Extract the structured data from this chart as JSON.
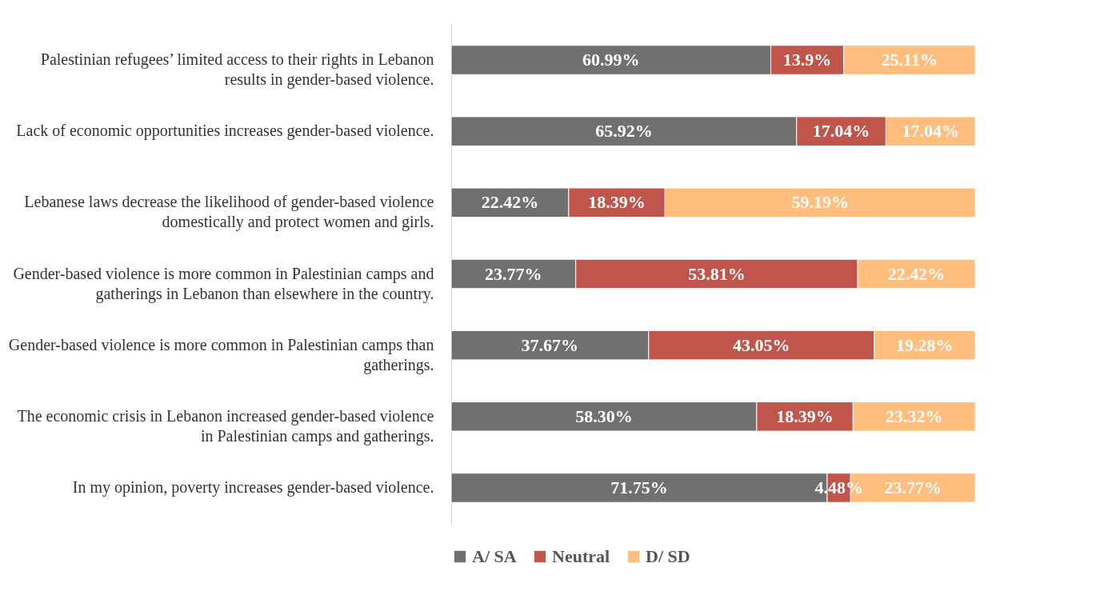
{
  "chart_data": {
    "type": "bar",
    "orientation": "horizontal",
    "stacked": true,
    "legend": "bottom",
    "tick_labels": "y",
    "grid": false,
    "xlim": [
      0,
      100
    ],
    "categories": [
      "Palestinian refugees’ limited access to their rights in Lebanon results in gender-based violence.",
      "Lack of economic opportunities increases gender-based violence.",
      "Lebanese laws decrease the likelihood of gender-based violence domestically and protect women and girls.",
      "Gender-based violence is more common in Palestinian camps and gatherings in Lebanon than elsewhere in the country.",
      "Gender-based violence is more common in Palestinian camps than gatherings.",
      "The economic crisis in Lebanon increased gender-based violence in Palestinian camps and gatherings.",
      "In my opinion, poverty increases gender-based violence."
    ],
    "series": [
      {
        "name": "A/ SA",
        "color": "#707070",
        "values": [
          60.99,
          65.92,
          22.42,
          23.77,
          37.67,
          58.3,
          71.75
        ],
        "value_labels": [
          "60.99%",
          "65.92%",
          "22.42%",
          "23.77%",
          "37.67%",
          "58.30%",
          "71.75%"
        ]
      },
      {
        "name": "Neutral",
        "color": "#c0564b",
        "values": [
          13.9,
          17.04,
          18.39,
          53.81,
          43.05,
          18.39,
          4.48
        ],
        "value_labels": [
          "13.9%",
          "17.04%",
          "18.39%",
          "53.81%",
          "43.05%",
          "18.39%",
          "4.48%"
        ]
      },
      {
        "name": "D/ SD",
        "color": "#ffbe7d",
        "values": [
          25.11,
          17.04,
          59.19,
          22.42,
          19.28,
          23.32,
          23.77
        ],
        "value_labels": [
          "25.11%",
          "17.04%",
          "59.19%",
          "22.42%",
          "19.28%",
          "23.32%",
          "23.77%"
        ]
      }
    ]
  }
}
